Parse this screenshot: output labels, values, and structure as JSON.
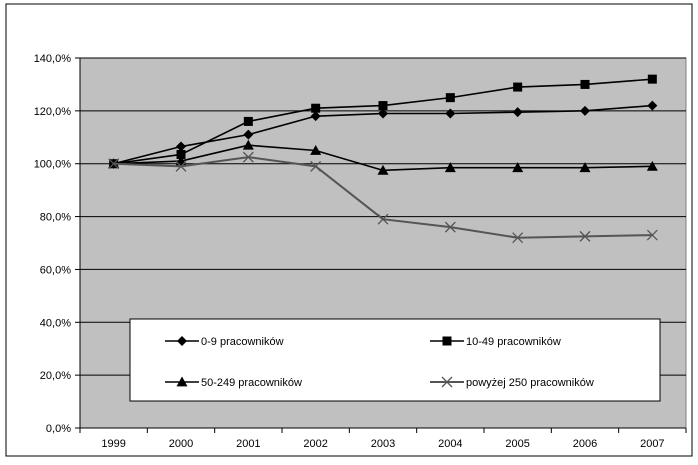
{
  "chart_data": {
    "type": "line",
    "title": "",
    "xlabel": "",
    "ylabel": "",
    "x": [
      "1999",
      "2000",
      "2001",
      "2002",
      "2003",
      "2004",
      "2005",
      "2006",
      "2007"
    ],
    "ylim": [
      0,
      140
    ],
    "yticks": [
      0,
      20,
      40,
      60,
      80,
      100,
      120,
      140
    ],
    "ytick_labels": [
      "0,0%",
      "20,0%",
      "40,0%",
      "60,0%",
      "80,0%",
      "100,0%",
      "120,0%",
      "140,0%"
    ],
    "grid": true,
    "plot_background": "#c0c0c0",
    "legend_position": "inside-bottom",
    "series": [
      {
        "name": "0-9 pracowników",
        "marker": "diamond",
        "color": "#000000",
        "values": [
          100,
          106.5,
          111,
          118,
          119,
          119,
          119.5,
          120,
          122
        ]
      },
      {
        "name": "10-49 pracowników",
        "marker": "square",
        "color": "#000000",
        "values": [
          100,
          103.5,
          116,
          121,
          122,
          125,
          129,
          130,
          132
        ]
      },
      {
        "name": "50-249 pracowników",
        "marker": "triangle",
        "color": "#000000",
        "values": [
          100,
          101,
          107,
          105,
          97.5,
          98.5,
          98.5,
          98.5,
          99
        ]
      },
      {
        "name": "powyżej 250 pracowników",
        "marker": "cross",
        "color": "#555555",
        "values": [
          100,
          99,
          102.5,
          99,
          79,
          76,
          72,
          72.5,
          73
        ]
      }
    ]
  }
}
